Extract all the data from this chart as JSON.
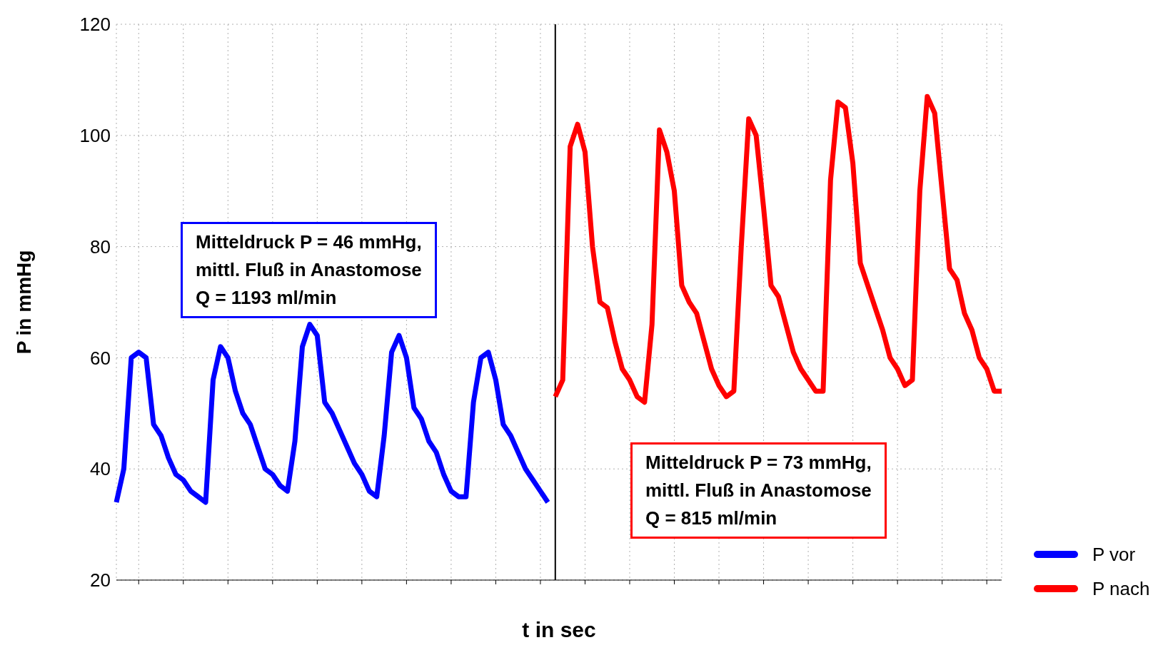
{
  "chart_data": {
    "type": "line",
    "xlabel": "t in sec",
    "ylabel": "P in mmHg",
    "categories": [
      null,
      null,
      null,
      null,
      null,
      null,
      null,
      null,
      null,
      null,
      null,
      null,
      null,
      null,
      null,
      null,
      null,
      null,
      null,
      null,
      null,
      null,
      null,
      null,
      null,
      null,
      null,
      null,
      null,
      null,
      null,
      null,
      null,
      null,
      null,
      null,
      null,
      null,
      null,
      null,
      null,
      null,
      null,
      null,
      null,
      null,
      null,
      null,
      null,
      null,
      null,
      null,
      null,
      null,
      null,
      null,
      null,
      null,
      null,
      null,
      null,
      null,
      null,
      null,
      null,
      null,
      null,
      null,
      null,
      null,
      null,
      null,
      null,
      null,
      null,
      null,
      null,
      null,
      null,
      null,
      null,
      null,
      null,
      null,
      null,
      null,
      null,
      null,
      null,
      null,
      null,
      null,
      null,
      null,
      null,
      null,
      null,
      null,
      null,
      null,
      null,
      null,
      null,
      null,
      null,
      null,
      null,
      null,
      null,
      null,
      null,
      null,
      null,
      null,
      null,
      null,
      null,
      null,
      null,
      null
    ],
    "series": [
      {
        "name": "P vor",
        "color": "#0000ff",
        "values": [
          34,
          40,
          60,
          61,
          60,
          48,
          46,
          42,
          39,
          38,
          36,
          35,
          34,
          56,
          62,
          60,
          54,
          50,
          48,
          44,
          40,
          39,
          37,
          36,
          45,
          62,
          66,
          64,
          52,
          50,
          47,
          44,
          41,
          39,
          36,
          35,
          46,
          61,
          64,
          60,
          51,
          49,
          45,
          43,
          39,
          36,
          35,
          35,
          52,
          60,
          61,
          56,
          48,
          46,
          43,
          40,
          38,
          36,
          34,
          null,
          null,
          null,
          null,
          null,
          null,
          null,
          null,
          null,
          null,
          null,
          null,
          null,
          null,
          null,
          null,
          null,
          null,
          null,
          null,
          null,
          null,
          null,
          null,
          null,
          null,
          null,
          null,
          null,
          null,
          null,
          null,
          null,
          null,
          null,
          null,
          null,
          null,
          null,
          null,
          null,
          null,
          null,
          null,
          null,
          null,
          null,
          null,
          null,
          null,
          null,
          null,
          null,
          null,
          null,
          null,
          null,
          null,
          null,
          null,
          null
        ]
      },
      {
        "name": "P nach",
        "color": "#ff0000",
        "values": [
          null,
          null,
          null,
          null,
          null,
          null,
          null,
          null,
          null,
          null,
          null,
          null,
          null,
          null,
          null,
          null,
          null,
          null,
          null,
          null,
          null,
          null,
          null,
          null,
          null,
          null,
          null,
          null,
          null,
          null,
          null,
          null,
          null,
          null,
          null,
          null,
          null,
          null,
          null,
          null,
          null,
          null,
          null,
          null,
          null,
          null,
          null,
          null,
          null,
          null,
          null,
          null,
          null,
          null,
          null,
          null,
          null,
          null,
          null,
          53,
          56,
          98,
          102,
          97,
          80,
          70,
          69,
          63,
          58,
          56,
          53,
          52,
          66,
          101,
          97,
          90,
          73,
          70,
          68,
          63,
          58,
          55,
          53,
          54,
          80,
          103,
          100,
          87,
          73,
          71,
          66,
          61,
          58,
          56,
          54,
          54,
          92,
          106,
          105,
          95,
          77,
          73,
          69,
          65,
          60,
          58,
          55,
          56,
          90,
          107,
          104,
          90,
          76,
          74,
          68,
          65,
          60,
          58,
          54,
          54
        ]
      }
    ],
    "ylim": [
      20,
      120
    ],
    "yticks": [
      20,
      40,
      60,
      80,
      100,
      120
    ],
    "grid": true,
    "legend": "bottom right",
    "marker": "none",
    "line_style": "solid",
    "annotations": [
      "Mitteldruck P = 46 mmHg,\nmittl. Fluß in Anastomose\nQ = 1193 ml/min",
      "Mitteldruck P = 73 mmHg,\nmittl. Fluß in Anastomose\nQ = 815 ml/min"
    ]
  }
}
